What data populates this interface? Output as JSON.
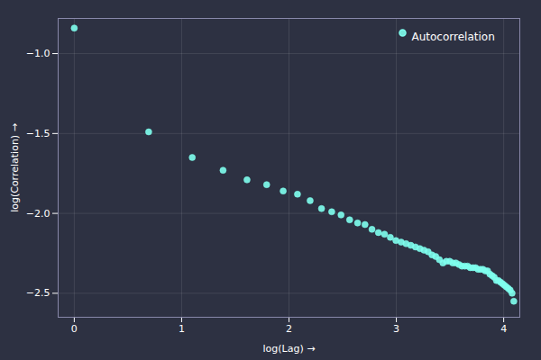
{
  "chart_data": {
    "type": "scatter",
    "xlabel": "log(Lag)",
    "ylabel": "log(Correlation)",
    "series": [
      {
        "name": "Autocorrelation",
        "color": "#7fffee",
        "marker": "circle",
        "x": [
          0.0,
          0.693,
          1.099,
          1.386,
          1.609,
          1.792,
          1.946,
          2.079,
          2.197,
          2.303,
          2.398,
          2.485,
          2.565,
          2.639,
          2.708,
          2.773,
          2.833,
          2.89,
          2.944,
          2.996,
          3.045,
          3.091,
          3.135,
          3.178,
          3.219,
          3.258,
          3.296,
          3.332,
          3.367,
          3.401,
          3.434,
          3.466,
          3.497,
          3.526,
          3.555,
          3.584,
          3.611,
          3.638,
          3.664,
          3.689,
          3.714,
          3.738,
          3.761,
          3.784,
          3.807,
          3.829,
          3.85,
          3.871,
          3.892,
          3.912,
          3.932,
          3.951,
          3.97,
          3.989,
          4.007,
          4.025,
          4.043,
          4.06,
          4.078,
          4.094
        ],
        "values": [
          -0.84,
          -1.49,
          -1.65,
          -1.73,
          -1.79,
          -1.82,
          -1.86,
          -1.88,
          -1.92,
          -1.97,
          -1.99,
          -2.01,
          -2.04,
          -2.06,
          -2.07,
          -2.1,
          -2.12,
          -2.13,
          -2.15,
          -2.17,
          -2.18,
          -2.19,
          -2.2,
          -2.21,
          -2.22,
          -2.23,
          -2.24,
          -2.26,
          -2.27,
          -2.29,
          -2.31,
          -2.3,
          -2.3,
          -2.31,
          -2.31,
          -2.32,
          -2.33,
          -2.33,
          -2.33,
          -2.34,
          -2.34,
          -2.34,
          -2.35,
          -2.35,
          -2.35,
          -2.36,
          -2.36,
          -2.38,
          -2.39,
          -2.4,
          -2.42,
          -2.42,
          -2.43,
          -2.44,
          -2.45,
          -2.46,
          -2.47,
          -2.48,
          -2.5,
          -2.55
        ]
      }
    ],
    "xlim": [
      -0.15,
      4.15
    ],
    "ylim": [
      -2.65,
      -0.78
    ],
    "xticks": [
      0,
      1,
      2,
      3,
      4
    ],
    "yticks": [
      {
        "value": -2.5,
        "label": "−2.5"
      },
      {
        "value": -2.0,
        "label": "−2.0"
      },
      {
        "value": -1.5,
        "label": "−1.5"
      },
      {
        "value": -1.0,
        "label": "−1.0"
      }
    ],
    "grid": true,
    "legend": "upper right"
  }
}
